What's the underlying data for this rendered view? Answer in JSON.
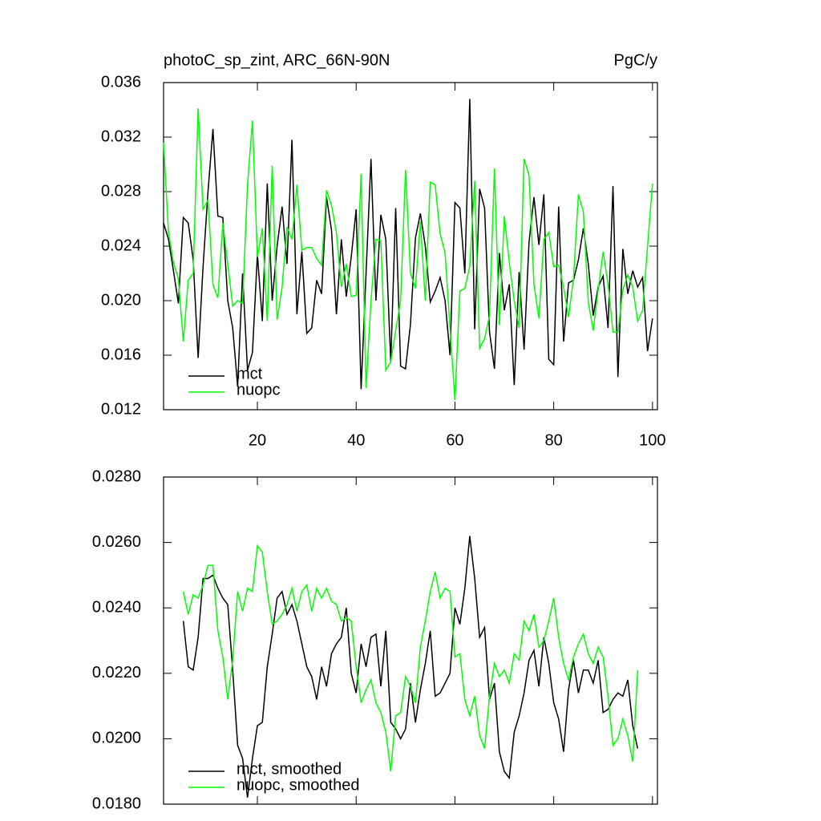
{
  "chart_data": [
    {
      "type": "line",
      "title": "photoC_sp_zint, ARC_66N-90N",
      "units": "PgC/y",
      "x": [
        1,
        2,
        3,
        4,
        5,
        6,
        7,
        8,
        9,
        10,
        11,
        12,
        13,
        14,
        15,
        16,
        17,
        18,
        19,
        20,
        21,
        22,
        23,
        24,
        25,
        26,
        27,
        28,
        29,
        30,
        31,
        32,
        33,
        34,
        35,
        36,
        37,
        38,
        39,
        40,
        41,
        42,
        43,
        44,
        45,
        46,
        47,
        48,
        49,
        50,
        51,
        52,
        53,
        54,
        55,
        56,
        57,
        58,
        59,
        60,
        61,
        62,
        63,
        64,
        65,
        66,
        67,
        68,
        69,
        70,
        71,
        72,
        73,
        74,
        75,
        76,
        77,
        78,
        79,
        80,
        81,
        82,
        83,
        84,
        85,
        86,
        87,
        88,
        89,
        90,
        91,
        92,
        93,
        94,
        95,
        96,
        97,
        98,
        99,
        100
      ],
      "series": [
        {
          "name": "mct",
          "color": "#000000",
          "values": [
            0.0257,
            0.0245,
            0.0222,
            0.0198,
            0.0261,
            0.0257,
            0.023,
            0.0158,
            0.0225,
            0.028,
            0.0326,
            0.0262,
            0.0261,
            0.02,
            0.018,
            0.0137,
            0.022,
            0.0149,
            0.0162,
            0.0234,
            0.0185,
            0.0286,
            0.02,
            0.024,
            0.0269,
            0.0227,
            0.0318,
            0.019,
            0.0236,
            0.0176,
            0.018,
            0.0215,
            0.0205,
            0.0276,
            0.0252,
            0.019,
            0.0245,
            0.0203,
            0.0232,
            0.0267,
            0.0135,
            0.022,
            0.0304,
            0.02,
            0.0263,
            0.0245,
            0.0155,
            0.0268,
            0.0152,
            0.015,
            0.0183,
            0.0246,
            0.0264,
            0.024,
            0.0199,
            0.0207,
            0.0217,
            0.02,
            0.016,
            0.0272,
            0.0268,
            0.022,
            0.0348,
            0.0179,
            0.0282,
            0.0268,
            0.0177,
            0.015,
            0.0235,
            0.0193,
            0.0212,
            0.0138,
            0.0221,
            0.0164,
            0.0243,
            0.0276,
            0.0241,
            0.0278,
            0.0157,
            0.0153,
            0.0269,
            0.017,
            0.0213,
            0.0215,
            0.023,
            0.0253,
            0.0227,
            0.0189,
            0.021,
            0.0218,
            0.018,
            0.0284,
            0.0144,
            0.0238,
            0.0205,
            0.0222,
            0.021,
            0.0217,
            0.0163,
            0.0187
          ]
        },
        {
          "name": "nuopc",
          "color": "#00ff00",
          "values": [
            0.0316,
            0.025,
            0.0228,
            0.0216,
            0.017,
            0.0215,
            0.022,
            0.0341,
            0.0267,
            0.0274,
            0.0212,
            0.0202,
            0.0257,
            0.0227,
            0.0196,
            0.02,
            0.0198,
            0.0285,
            0.0332,
            0.0232,
            0.0253,
            0.0185,
            0.0299,
            0.0186,
            0.021,
            0.0254,
            0.0245,
            0.0285,
            0.0237,
            0.0239,
            0.0239,
            0.0231,
            0.0226,
            0.0281,
            0.027,
            0.025,
            0.021,
            0.0227,
            0.0203,
            0.0204,
            0.0293,
            0.0136,
            0.02,
            0.0245,
            0.0244,
            0.0149,
            0.0155,
            0.0178,
            0.02,
            0.0296,
            0.022,
            0.0209,
            0.0258,
            0.02,
            0.0287,
            0.0285,
            0.0249,
            0.0235,
            0.018,
            0.0127,
            0.0207,
            0.0209,
            0.0225,
            0.0288,
            0.0165,
            0.0172,
            0.0189,
            0.0297,
            0.0182,
            0.0262,
            0.0228,
            0.02,
            0.018,
            0.0304,
            0.0292,
            0.0212,
            0.0187,
            0.0245,
            0.025,
            0.0225,
            0.0226,
            0.021,
            0.0188,
            0.0216,
            0.0278,
            0.0265,
            0.0199,
            0.0178,
            0.0208,
            0.0236,
            0.0212,
            0.0177,
            0.0177,
            0.0208,
            0.0219,
            0.021,
            0.0185,
            0.0193,
            0.024,
            0.0286
          ]
        }
      ],
      "xlim": [
        1,
        101
      ],
      "xticks": [
        20,
        40,
        60,
        80,
        100
      ],
      "ylim": [
        0.012,
        0.036
      ],
      "yticks": [
        0.012,
        0.016,
        {
          "value": 0.02,
          "label": "0.020"
        },
        0.024,
        0.028,
        0.032,
        0.036
      ]
    },
    {
      "type": "line",
      "x": [
        5,
        6,
        7,
        8,
        9,
        10,
        11,
        12,
        13,
        14,
        15,
        16,
        17,
        18,
        19,
        20,
        21,
        22,
        23,
        24,
        25,
        26,
        27,
        28,
        29,
        30,
        31,
        32,
        33,
        34,
        35,
        36,
        37,
        38,
        39,
        40,
        41,
        42,
        43,
        44,
        45,
        46,
        47,
        48,
        49,
        50,
        51,
        52,
        53,
        54,
        55,
        56,
        57,
        58,
        59,
        60,
        61,
        62,
        63,
        64,
        65,
        66,
        67,
        68,
        69,
        70,
        71,
        72,
        73,
        74,
        75,
        76,
        77,
        78,
        79,
        80,
        81,
        82,
        83,
        84,
        85,
        86,
        87,
        88,
        89,
        90,
        91,
        92,
        93,
        94,
        95,
        96,
        97
      ],
      "series": [
        {
          "name": "mct, smoothed",
          "color": "#000000",
          "values": [
            0.0236,
            0.0222,
            0.0221,
            0.0231,
            0.0249,
            0.0249,
            0.025,
            0.0246,
            0.0243,
            0.0241,
            0.0221,
            0.0198,
            0.0194,
            0.0182,
            0.0194,
            0.0204,
            0.0205,
            0.0222,
            0.0232,
            0.0243,
            0.0245,
            0.0238,
            0.0241,
            0.0236,
            0.0229,
            0.0222,
            0.0219,
            0.0212,
            0.0222,
            0.0216,
            0.0226,
            0.0229,
            0.0231,
            0.024,
            0.022,
            0.0214,
            0.0229,
            0.0222,
            0.0231,
            0.0232,
            0.0216,
            0.0233,
            0.0205,
            0.0203,
            0.02,
            0.0203,
            0.0217,
            0.0205,
            0.0215,
            0.0223,
            0.0233,
            0.0213,
            0.0214,
            0.0217,
            0.022,
            0.024,
            0.0235,
            0.0246,
            0.0262,
            0.0249,
            0.0231,
            0.0234,
            0.0212,
            0.0217,
            0.0196,
            0.019,
            0.0188,
            0.0202,
            0.0207,
            0.0214,
            0.0224,
            0.0227,
            0.0216,
            0.0231,
            0.0223,
            0.0211,
            0.0206,
            0.0196,
            0.0215,
            0.0224,
            0.0214,
            0.0221,
            0.0221,
            0.0217,
            0.0224,
            0.0208,
            0.0209,
            0.0212,
            0.0214,
            0.0213,
            0.0218,
            0.0204,
            0.0197
          ]
        },
        {
          "name": "nuopc, smoothed",
          "color": "#00ff00",
          "values": [
            0.0245,
            0.0238,
            0.0244,
            0.0243,
            0.0247,
            0.0253,
            0.0253,
            0.0233,
            0.0225,
            0.0212,
            0.0224,
            0.0245,
            0.0239,
            0.0246,
            0.0245,
            0.0259,
            0.0257,
            0.0245,
            0.0235,
            0.0236,
            0.0238,
            0.0241,
            0.0246,
            0.0239,
            0.0245,
            0.0247,
            0.0239,
            0.0246,
            0.0243,
            0.0246,
            0.0242,
            0.0241,
            0.0236,
            0.0237,
            0.0236,
            0.0222,
            0.0211,
            0.0215,
            0.0218,
            0.0211,
            0.0208,
            0.0202,
            0.019,
            0.0207,
            0.0208,
            0.0219,
            0.0216,
            0.0211,
            0.0228,
            0.0236,
            0.0245,
            0.0251,
            0.0243,
            0.0246,
            0.0245,
            0.0225,
            0.0226,
            0.0212,
            0.0207,
            0.0213,
            0.0201,
            0.0197,
            0.0213,
            0.0223,
            0.0219,
            0.0221,
            0.0217,
            0.0226,
            0.0224,
            0.0236,
            0.0233,
            0.0238,
            0.0228,
            0.023,
            0.0236,
            0.0243,
            0.0231,
            0.0223,
            0.0218,
            0.0225,
            0.0229,
            0.0232,
            0.0226,
            0.0223,
            0.0228,
            0.0225,
            0.0213,
            0.0198,
            0.02,
            0.0206,
            0.0201,
            0.0193,
            0.0221
          ]
        }
      ],
      "xlim": [
        1,
        101
      ],
      "xticks": [
        20,
        40,
        60,
        80,
        100
      ],
      "ylim": [
        0.018,
        0.028
      ],
      "yticks": [
        {
          "value": 0.018,
          "label": "0.0180"
        },
        {
          "value": 0.02,
          "label": "0.0200"
        },
        {
          "value": 0.022,
          "label": "0.0220"
        },
        {
          "value": 0.024,
          "label": "0.0240"
        },
        {
          "value": 0.026,
          "label": "0.0260"
        },
        {
          "value": 0.028,
          "label": "0.0280"
        }
      ]
    }
  ]
}
